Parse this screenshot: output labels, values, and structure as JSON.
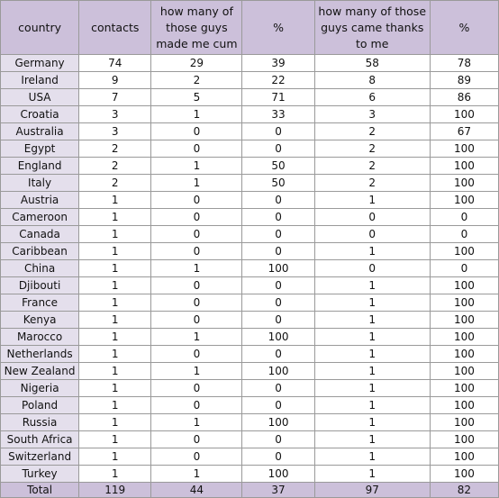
{
  "headers": [
    "country",
    "contacts",
    "how many of those guys made me cum",
    "%",
    "how many of those guys came thanks to me",
    "%"
  ],
  "rows": [
    [
      "Germany",
      "74",
      "29",
      "39",
      "58",
      "78"
    ],
    [
      "Ireland",
      "9",
      "2",
      "22",
      "8",
      "89"
    ],
    [
      "USA",
      "7",
      "5",
      "71",
      "6",
      "86"
    ],
    [
      "Croatia",
      "3",
      "1",
      "33",
      "3",
      "100"
    ],
    [
      "Australia",
      "3",
      "0",
      "0",
      "2",
      "67"
    ],
    [
      "Egypt",
      "2",
      "0",
      "0",
      "2",
      "100"
    ],
    [
      "England",
      "2",
      "1",
      "50",
      "2",
      "100"
    ],
    [
      "Italy",
      "2",
      "1",
      "50",
      "2",
      "100"
    ],
    [
      "Austria",
      "1",
      "0",
      "0",
      "1",
      "100"
    ],
    [
      "Cameroon",
      "1",
      "0",
      "0",
      "0",
      "0"
    ],
    [
      "Canada",
      "1",
      "0",
      "0",
      "0",
      "0"
    ],
    [
      "Caribbean",
      "1",
      "0",
      "0",
      "1",
      "100"
    ],
    [
      "China",
      "1",
      "1",
      "100",
      "0",
      "0"
    ],
    [
      "Djibouti",
      "1",
      "0",
      "0",
      "1",
      "100"
    ],
    [
      "France",
      "1",
      "0",
      "0",
      "1",
      "100"
    ],
    [
      "Kenya",
      "1",
      "0",
      "0",
      "1",
      "100"
    ],
    [
      "Marocco",
      "1",
      "1",
      "100",
      "1",
      "100"
    ],
    [
      "Netherlands",
      "1",
      "0",
      "0",
      "1",
      "100"
    ],
    [
      "New Zealand",
      "1",
      "1",
      "100",
      "1",
      "100"
    ],
    [
      "Nigeria",
      "1",
      "0",
      "0",
      "1",
      "100"
    ],
    [
      "Poland",
      "1",
      "0",
      "0",
      "1",
      "100"
    ],
    [
      "Russia",
      "1",
      "1",
      "100",
      "1",
      "100"
    ],
    [
      "South Africa",
      "1",
      "0",
      "0",
      "1",
      "100"
    ],
    [
      "Switzerland",
      "1",
      "0",
      "0",
      "1",
      "100"
    ],
    [
      "Turkey",
      "1",
      "1",
      "100",
      "1",
      "100"
    ]
  ],
  "totals": [
    "Total",
    "119",
    "44",
    "37",
    "97",
    "82"
  ],
  "colors": {
    "header_bg": "#ccc0da",
    "country_bg": "#e4dfec",
    "grid": "#9a9a9a"
  }
}
